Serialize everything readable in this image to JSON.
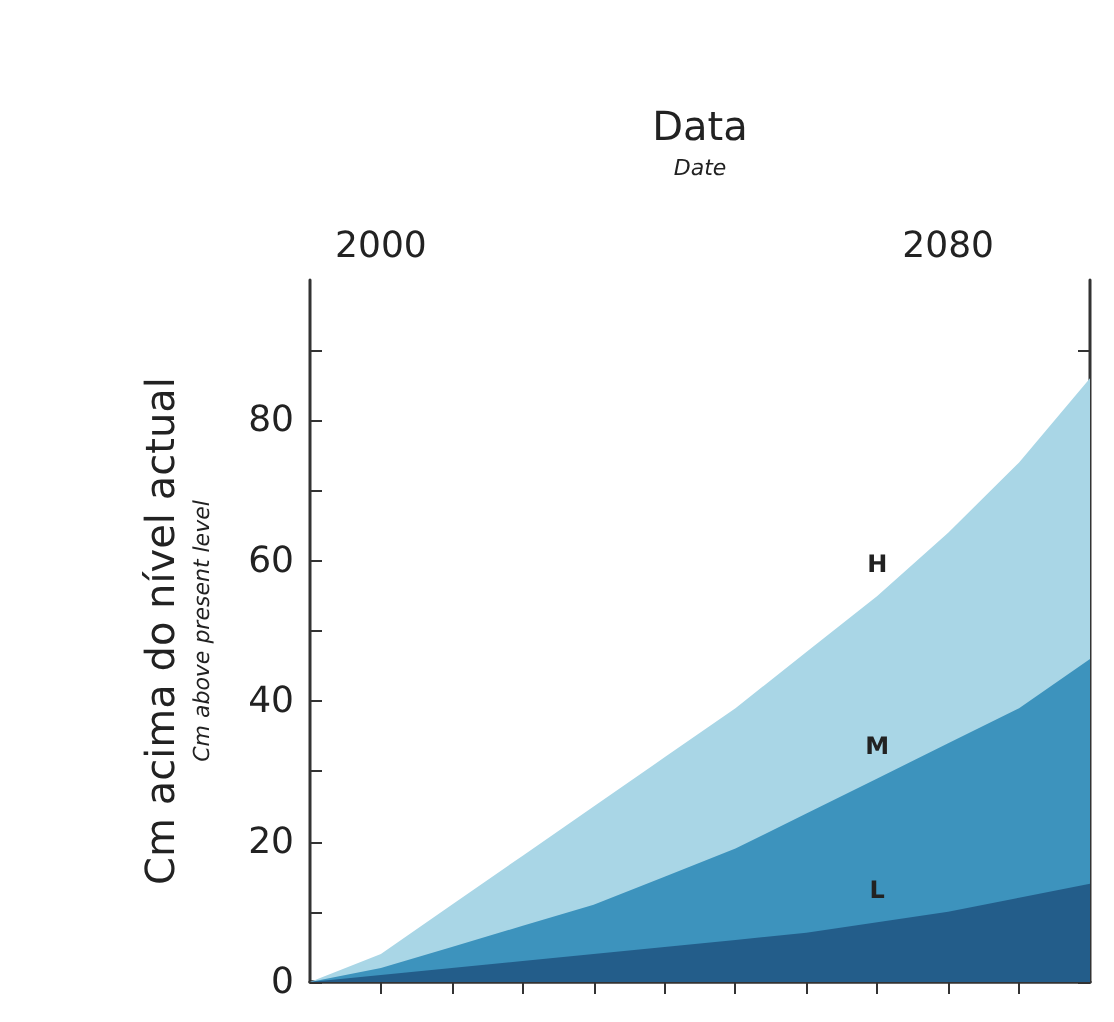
{
  "chart_data": {
    "type": "area",
    "xlabel": "Data\nDate",
    "ylabel": "Cm acima do nível actual\nCm above present level",
    "x": [
      1990,
      2000,
      2010,
      2020,
      2030,
      2040,
      2050,
      2060,
      2070,
      2080,
      2090,
      2100
    ],
    "series": [
      {
        "name": "H",
        "color": "#a9d6e6",
        "values": [
          0,
          4,
          11,
          18,
          25,
          32,
          39,
          47,
          55,
          64,
          74,
          86
        ]
      },
      {
        "name": "M",
        "color": "#3d93bd",
        "values": [
          0,
          2,
          5,
          8,
          11,
          15,
          19,
          24,
          29,
          34,
          39,
          46
        ]
      },
      {
        "name": "L",
        "color": "#235d8a",
        "values": [
          0,
          1,
          2,
          3,
          4,
          5,
          6,
          7,
          8.5,
          10,
          12,
          14
        ]
      }
    ],
    "xlim": [
      1990,
      2100
    ],
    "xticks": [
      2000,
      {
        "value": 2010,
        "label": null
      },
      {
        "value": 2020,
        "label": null
      },
      {
        "value": 2030,
        "label": null
      },
      {
        "value": 2040,
        "label": null
      },
      {
        "value": 2050,
        "label": null
      },
      {
        "value": 2060,
        "label": null
      },
      {
        "value": 2070,
        "label": null
      },
      2080,
      {
        "value": 2090,
        "label": null
      }
    ],
    "ylim": [
      0,
      100
    ],
    "yticks": [
      0,
      {
        "value": 10,
        "label": null
      },
      20,
      {
        "value": 30,
        "label": null
      },
      40,
      {
        "value": 50,
        "label": null
      },
      60,
      {
        "value": 70,
        "label": null
      },
      80,
      {
        "value": 90,
        "label": null
      }
    ],
    "grid": false,
    "legend": false
  }
}
